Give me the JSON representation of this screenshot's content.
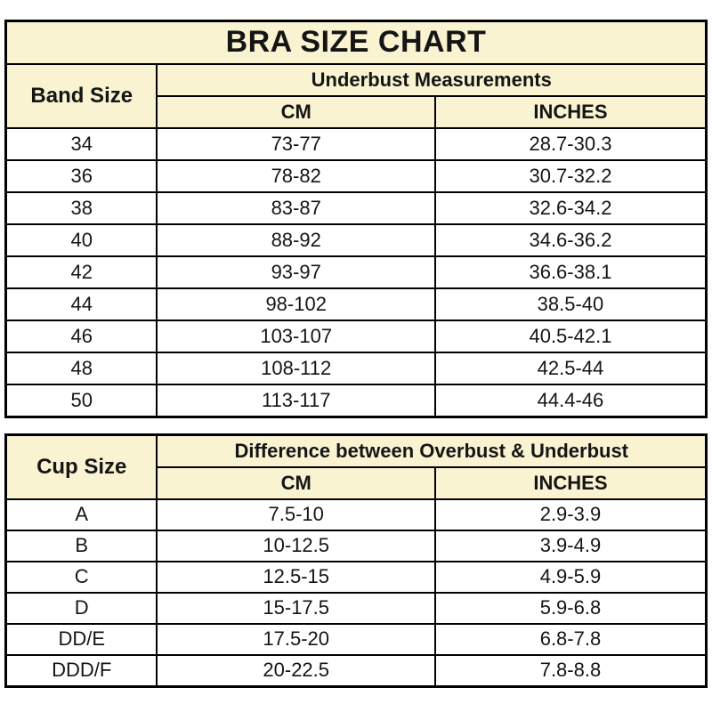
{
  "colors": {
    "header_bg": "#faf3d2",
    "row_bg": "#ffffff",
    "border": "#000000",
    "text": "#151515"
  },
  "chart_data": [
    {
      "type": "table",
      "title": "BRA SIZE CHART",
      "row_header": "Band Size",
      "group_header": "Underbust Measurements",
      "columns": [
        "CM",
        "INCHES"
      ],
      "rows": [
        {
          "band": "34",
          "cm": "73-77",
          "inches": "28.7-30.3"
        },
        {
          "band": "36",
          "cm": "78-82",
          "inches": "30.7-32.2"
        },
        {
          "band": "38",
          "cm": "83-87",
          "inches": "32.6-34.2"
        },
        {
          "band": "40",
          "cm": "88-92",
          "inches": "34.6-36.2"
        },
        {
          "band": "42",
          "cm": "93-97",
          "inches": "36.6-38.1"
        },
        {
          "band": "44",
          "cm": "98-102",
          "inches": "38.5-40"
        },
        {
          "band": "46",
          "cm": "103-107",
          "inches": "40.5-42.1"
        },
        {
          "band": "48",
          "cm": "108-112",
          "inches": "42.5-44"
        },
        {
          "band": "50",
          "cm": "113-117",
          "inches": "44.4-46"
        }
      ]
    },
    {
      "type": "table",
      "row_header": "Cup Size",
      "group_header": "Difference between Overbust & Underbust",
      "columns": [
        "CM",
        "INCHES"
      ],
      "rows": [
        {
          "cup": "A",
          "cm": "7.5-10",
          "inches": "2.9-3.9"
        },
        {
          "cup": "B",
          "cm": "10-12.5",
          "inches": "3.9-4.9"
        },
        {
          "cup": "C",
          "cm": "12.5-15",
          "inches": "4.9-5.9"
        },
        {
          "cup": "D",
          "cm": "15-17.5",
          "inches": "5.9-6.8"
        },
        {
          "cup": "DD/E",
          "cm": "17.5-20",
          "inches": "6.8-7.8"
        },
        {
          "cup": "DDD/F",
          "cm": "20-22.5",
          "inches": "7.8-8.8"
        }
      ]
    }
  ]
}
